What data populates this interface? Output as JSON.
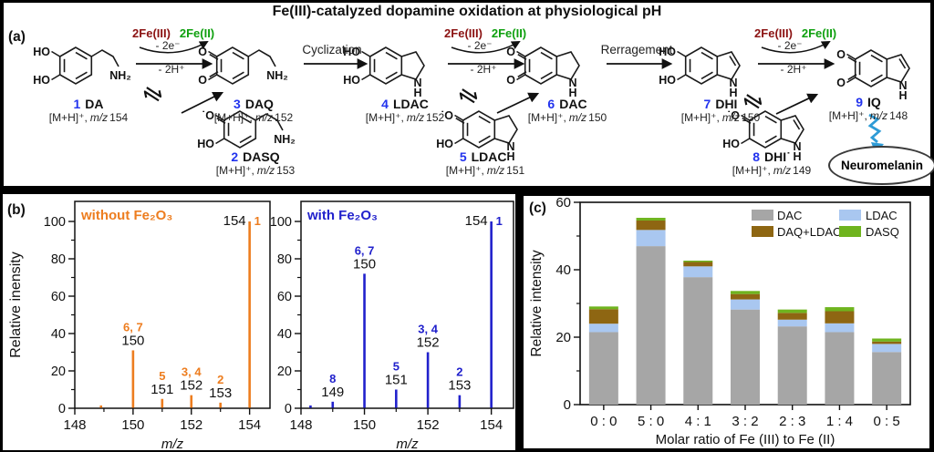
{
  "figure_title": "Fe(III)-catalyzed dopamine oxidation at physiological pH",
  "colors": {
    "compound_number_blue": "#2233ee",
    "fe3_dark_red": "#8b1212",
    "fe2_green": "#0ea00e",
    "neuromelanin_red": "#e80c0c",
    "squiggle_arrow_blue": "#2E9BD6",
    "spectrum_without": "#ED7D1F",
    "spectrum_with": "#2121CC"
  },
  "panel_a": {
    "label": "(a)",
    "ox": {
      "fe3": "2Fe(III)",
      "fe2": "2Fe(II)",
      "electrons": "- 2e⁻",
      "protons": "- 2H⁺"
    },
    "cyclization": "Cyclization",
    "rearrangement": "Rerragement",
    "endpoint": "Neuromelanin",
    "compounds": [
      {
        "num": "1",
        "name": "DA",
        "ion": "[M+H]⁺,",
        "mz_label": "m/z",
        "mz_value": "154",
        "sub_top": "HO",
        "sub_bottom": "HO",
        "tail": "NH₂"
      },
      {
        "num": "2",
        "name": "DASQ",
        "ion": "[M+H]⁺,",
        "mz_label": "m/z",
        "mz_value": "153",
        "sub_top": "˙O",
        "sub_bottom": "HO",
        "tail": "NH₂"
      },
      {
        "num": "3",
        "name": "DAQ",
        "ion": "[M+H]⁺,",
        "mz_label": "m/z",
        "mz_value": "152",
        "sub_top": "O",
        "sub_bottom": "O",
        "tail": "NH₂"
      },
      {
        "num": "4",
        "name": "LDAC",
        "ion": "[M+H]⁺,",
        "mz_label": "m/z",
        "mz_value": "152",
        "sub_top": "HO",
        "sub_bottom": "HO",
        "n": "N",
        "h": "H"
      },
      {
        "num": "5",
        "name": "LDAC˙",
        "ion": "[M+H]⁺,",
        "mz_label": "m/z",
        "mz_value": "151",
        "sub_top": "˙O",
        "sub_bottom": "HO",
        "n": "N",
        "h": "H"
      },
      {
        "num": "6",
        "name": "DAC",
        "ion": "[M+H]⁺,",
        "mz_label": "m/z",
        "mz_value": "150",
        "sub_top": "O",
        "sub_bottom": "O",
        "n": "N",
        "h": "H"
      },
      {
        "num": "7",
        "name": "DHI",
        "ion": "[M+H]⁺,",
        "mz_label": "m/z",
        "mz_value": "150",
        "sub_top": "HO",
        "sub_bottom": "HO",
        "n": "N",
        "h": "H"
      },
      {
        "num": "8",
        "name": "DHI˙",
        "ion": "[M+H]⁺,",
        "mz_label": "m/z",
        "mz_value": "149",
        "sub_top": "˙O",
        "sub_bottom": "HO",
        "n": "N",
        "h": "H"
      },
      {
        "num": "9",
        "name": "IQ",
        "ion": "[M+H]⁺,",
        "mz_label": "m/z",
        "mz_value": "148",
        "sub_top": "O",
        "sub_bottom": "O",
        "n": "N",
        "h": "H"
      }
    ]
  },
  "panel_b": {
    "label": "(b)"
  },
  "panel_c": {
    "label": "(c)"
  },
  "chart_data": [
    {
      "type": "bar",
      "id": "ms-without",
      "title": "without Fe₂O₃",
      "color": "#ED7D1F",
      "xlabel": "m/z",
      "ylabel": "Relative inensity",
      "xlim": [
        148,
        154.7
      ],
      "ylim": [
        0,
        100
      ],
      "xticks": [
        148,
        150,
        152,
        154
      ],
      "yticks": [
        0,
        20,
        40,
        60,
        80,
        100
      ],
      "peaks": [
        {
          "mz": 148.9,
          "intensity": 1.5
        },
        {
          "mz": 150,
          "intensity": 31,
          "peak_label": "150",
          "compound_label": "6, 7"
        },
        {
          "mz": 151,
          "intensity": 5,
          "peak_label": "151",
          "compound_label": "5"
        },
        {
          "mz": 152,
          "intensity": 7,
          "peak_label": "152",
          "compound_label": "3, 4"
        },
        {
          "mz": 153,
          "intensity": 3,
          "peak_label": "153",
          "compound_label": "2"
        },
        {
          "mz": 154,
          "intensity": 100,
          "peak_label": "154",
          "compound_label": "1"
        }
      ]
    },
    {
      "type": "bar",
      "id": "ms-with",
      "title": "with Fe₂O₃",
      "color": "#2121CC",
      "xlabel": "m/z",
      "ylabel": "",
      "xlim": [
        148,
        154.7
      ],
      "ylim": [
        0,
        100
      ],
      "xticks": [
        148,
        150,
        152,
        154
      ],
      "yticks": [
        0,
        20,
        40,
        60,
        80,
        100
      ],
      "peaks": [
        {
          "mz": 148.3,
          "intensity": 1.5
        },
        {
          "mz": 149,
          "intensity": 3.5,
          "peak_label": "149",
          "compound_label": "8"
        },
        {
          "mz": 150,
          "intensity": 72,
          "peak_label": "150",
          "compound_label": "6, 7"
        },
        {
          "mz": 151,
          "intensity": 10,
          "peak_label": "151",
          "compound_label": "5"
        },
        {
          "mz": 152,
          "intensity": 30,
          "peak_label": "152",
          "compound_label": "3, 4"
        },
        {
          "mz": 153,
          "intensity": 7,
          "peak_label": "153",
          "compound_label": "2"
        },
        {
          "mz": 154,
          "intensity": 100,
          "peak_label": "154",
          "compound_label": "1"
        }
      ]
    },
    {
      "type": "bar",
      "stacked": true,
      "id": "fe-ratio",
      "ylabel": "Relative intensity",
      "xlabel": "Molar ratio of Fe (III) to Fe (II)",
      "ylim": [
        0,
        60
      ],
      "yticks": [
        0,
        20,
        40,
        60
      ],
      "categories": [
        "0 : 0",
        "5 : 0",
        "4 : 1",
        "3 : 2",
        "2 : 3",
        "1 : 4",
        "0 : 5"
      ],
      "series": [
        {
          "name": "DAC",
          "color": "#A6A6A6",
          "values": [
            21.5,
            47.0,
            37.8,
            28.2,
            23.2,
            21.5,
            15.6
          ]
        },
        {
          "name": "LDAC",
          "color": "#A9C7F0",
          "values": [
            2.5,
            4.8,
            3.2,
            3.0,
            2.0,
            2.6,
            2.4
          ]
        },
        {
          "name": "DAQ+LDAC",
          "color": "#8E6612",
          "values": [
            4.3,
            2.8,
            1.3,
            1.6,
            2.0,
            3.6,
            0.7
          ]
        },
        {
          "name": "DASQ",
          "color": "#6FB41E",
          "values": [
            0.8,
            0.8,
            0.4,
            0.9,
            1.0,
            1.2,
            0.9
          ]
        }
      ],
      "legend_position": "top-right",
      "legend_rows": [
        [
          "DAC",
          "LDAC"
        ],
        [
          "DAQ+LDAC",
          "DASQ"
        ]
      ]
    }
  ]
}
